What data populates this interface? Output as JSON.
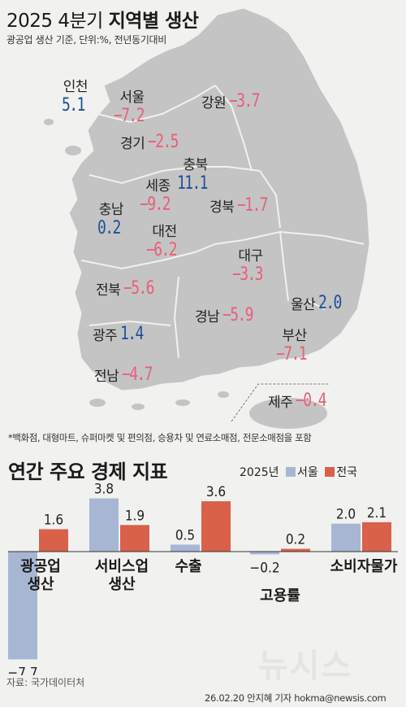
{
  "title_year": "2025 4분기",
  "title_main": "지역별 생산",
  "subtitle": "광공업 생산 기준, 단위:%, 전년동기대비",
  "regions": [
    {
      "name": "인천",
      "value": "5.1",
      "sign": "pos"
    },
    {
      "name": "서울",
      "value": "−7.2",
      "sign": "neg"
    },
    {
      "name": "강원",
      "value": "−3.7",
      "sign": "neg"
    },
    {
      "name": "경기",
      "value": "−2.5",
      "sign": "neg"
    },
    {
      "name": "충북",
      "value": "11.1",
      "sign": "pos"
    },
    {
      "name": "세종",
      "value": "−9.2",
      "sign": "neg"
    },
    {
      "name": "충남",
      "value": "0.2",
      "sign": "pos"
    },
    {
      "name": "경북",
      "value": "−1.7",
      "sign": "neg"
    },
    {
      "name": "대전",
      "value": "−6.2",
      "sign": "neg"
    },
    {
      "name": "대구",
      "value": "−3.3",
      "sign": "neg"
    },
    {
      "name": "전북",
      "value": "−5.6",
      "sign": "neg"
    },
    {
      "name": "울산",
      "value": "2.0",
      "sign": "pos"
    },
    {
      "name": "경남",
      "value": "−5.9",
      "sign": "neg"
    },
    {
      "name": "광주",
      "value": "1.4",
      "sign": "pos"
    },
    {
      "name": "부산",
      "value": "−7.1",
      "sign": "neg"
    },
    {
      "name": "전남",
      "value": "−4.7",
      "sign": "neg"
    },
    {
      "name": "제주",
      "value": "−0.4",
      "sign": "neg"
    }
  ],
  "footnote": "*백화점, 대형마트, 슈퍼마켓 및 편의점, 승용차 및 연료소매점, 전문소매점을 포함",
  "chart_title": "연간 주요 경제 지표",
  "legend_year": "2025년",
  "colors": {
    "seoul": "#a7b7d3",
    "national": "#d9614a",
    "pos": "#1f4e9a",
    "neg": "#e85f78",
    "map_land": "#c4c4c4"
  },
  "chart_data": {
    "type": "bar",
    "categories": [
      "광공업 생산",
      "서비스업 생산",
      "수출",
      "고용률",
      "소비자물가"
    ],
    "category_lines": [
      [
        "광공업",
        "생산"
      ],
      [
        "서비스업",
        "생산"
      ],
      [
        "수출"
      ],
      [
        "고용률"
      ],
      [
        "소비자물가"
      ]
    ],
    "series": [
      {
        "name": "서울",
        "values": [
          -7.7,
          3.8,
          0.5,
          -0.2,
          2.0
        ]
      },
      {
        "name": "전국",
        "values": [
          1.6,
          1.9,
          3.6,
          0.2,
          2.1
        ]
      }
    ],
    "value_labels": [
      [
        "−7.7",
        "3.8",
        "0.5",
        "−0.2",
        "2.0"
      ],
      [
        "1.6",
        "1.9",
        "3.6",
        "0.2",
        "2.1"
      ]
    ],
    "ylim": [
      -8,
      4
    ]
  },
  "source": "자료: 국가데이터처",
  "credit": "26.02.20 안지혜 기자 hokma@newsis.com",
  "logo": "뉴시스"
}
